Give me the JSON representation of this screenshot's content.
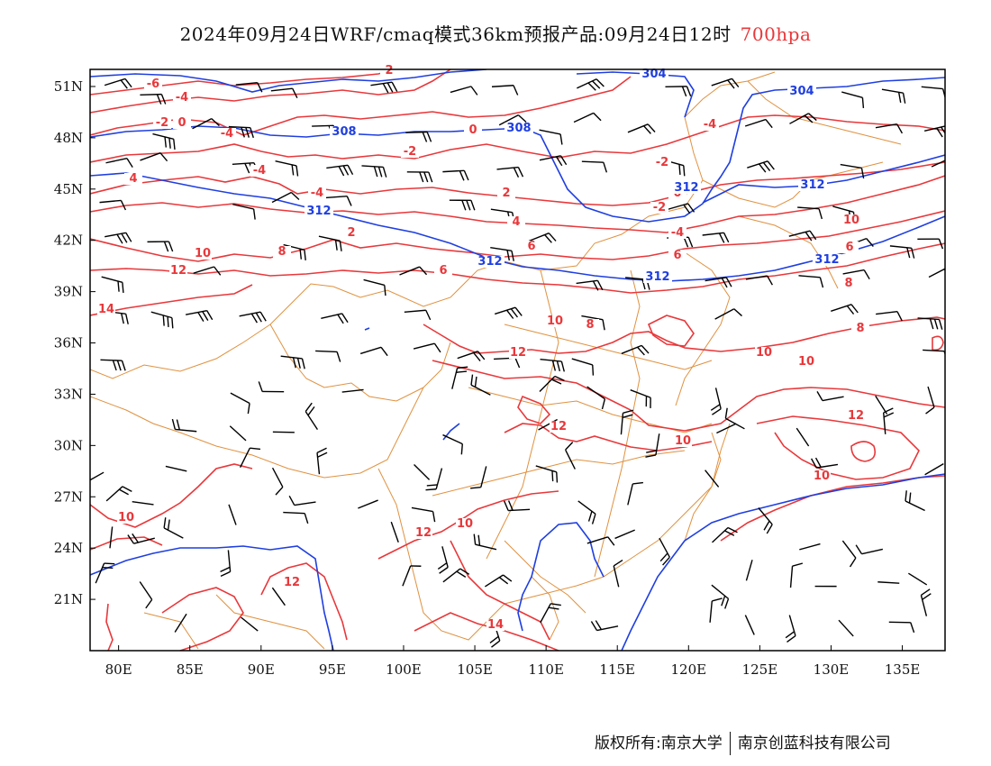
{
  "header": {
    "title": "2024年09月24日WRF/cmaq模式36km预报产品:09月24日12时",
    "level": "700hpa"
  },
  "map": {
    "lon_range": [
      78,
      138
    ],
    "lat_range": [
      18,
      52
    ],
    "x_ticks": [
      "80E",
      "85E",
      "90E",
      "95E",
      "100E",
      "105E",
      "110E",
      "115E",
      "120E",
      "125E",
      "130E",
      "135E"
    ],
    "x_tick_values": [
      80,
      85,
      90,
      95,
      100,
      105,
      110,
      115,
      120,
      125,
      130,
      135
    ],
    "y_ticks": [
      "51N",
      "48N",
      "45N",
      "42N",
      "39N",
      "36N",
      "33N",
      "30N",
      "27N",
      "24N",
      "21N"
    ],
    "y_tick_values": [
      51,
      48,
      45,
      42,
      39,
      36,
      33,
      30,
      27,
      24,
      21
    ],
    "colors": {
      "temperature": "#e8383b",
      "height": "#1f3fe0",
      "boundary": "#e0913f",
      "wind": "#000000"
    },
    "height_labels": [
      "304",
      "304",
      "308",
      "308",
      "312",
      "312",
      "312",
      "312",
      "312",
      "312"
    ],
    "temperature_labels": [
      "-6",
      "-4",
      "-2",
      "0",
      "-4",
      "2",
      "-4",
      "-2",
      "0",
      "4",
      "-4",
      "-2",
      "0",
      "-4",
      "-2",
      "2",
      "-4",
      "2",
      "4",
      "10",
      "12",
      "6",
      "6",
      "6",
      "8",
      "8",
      "10",
      "12",
      "8",
      "10",
      "10",
      "8",
      "14",
      "12",
      "12",
      "10",
      "10",
      "12",
      "12",
      "10",
      "14",
      "10",
      "10",
      "6"
    ]
  },
  "footer": {
    "copyright_left": "版权所有:南京大学",
    "copyright_right": "南京创蓝科技有限公司"
  }
}
